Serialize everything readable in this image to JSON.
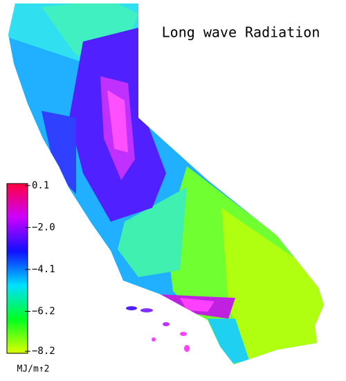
{
  "title": "Long wave Radiation",
  "colorbar": {
    "unit": "MJ/m↑2",
    "clim": [
      -8.3,
      0.2
    ],
    "ticks": [
      {
        "value": 0.1,
        "label": "0.1"
      },
      {
        "value": -2.0,
        "label": "−2.0"
      },
      {
        "value": -4.1,
        "label": "−4.1"
      },
      {
        "value": -6.2,
        "label": "−6.2"
      },
      {
        "value": -8.2,
        "label": "−8.2"
      }
    ],
    "colors": [
      "#ff0040",
      "#cc00ff",
      "#1010ff",
      "#00e0ff",
      "#00ff20",
      "#ddff00"
    ]
  }
}
